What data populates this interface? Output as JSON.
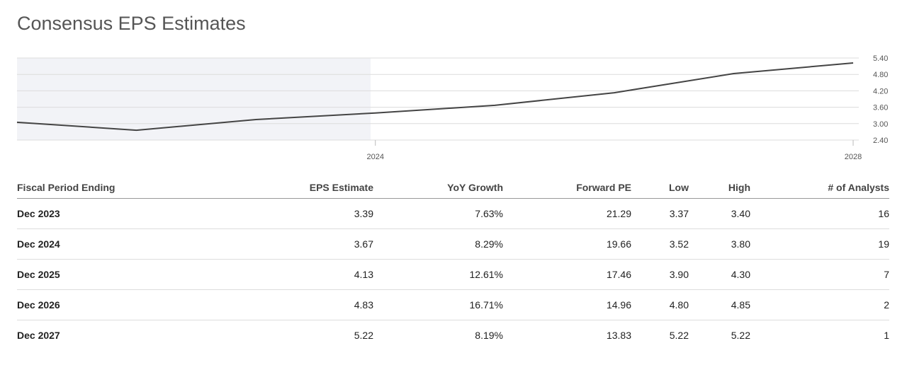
{
  "title": "Consensus EPS Estimates",
  "chart_data": {
    "type": "line",
    "x": [
      2021,
      2022,
      2023,
      2024,
      2025,
      2026,
      2027,
      2028
    ],
    "values": [
      3.05,
      2.76,
      3.15,
      3.39,
      3.67,
      4.13,
      4.83,
      5.22
    ],
    "color": "#444444",
    "xlim": [
      2021,
      2028
    ],
    "xticks": [
      2024,
      2028
    ],
    "ylim": [
      2.4,
      5.4
    ],
    "yticks": [
      {
        "value": 2.4,
        "label": "2.40"
      },
      {
        "value": 3.0,
        "label": "3.00"
      },
      {
        "value": 3.6,
        "label": "3.60"
      },
      {
        "value": 4.2,
        "label": "4.20"
      },
      {
        "value": 4.8,
        "label": "4.80"
      },
      {
        "value": 5.4,
        "label": "5.40"
      }
    ],
    "grid": true
  },
  "table": {
    "columns": [
      "Fiscal Period Ending",
      "EPS Estimate",
      "YoY Growth",
      "Forward PE",
      "Low",
      "High",
      "# of Analysts"
    ],
    "rows": [
      [
        "Dec 2023",
        "3.39",
        "7.63%",
        "21.29",
        "3.37",
        "3.40",
        "16"
      ],
      [
        "Dec 2024",
        "3.67",
        "8.29%",
        "19.66",
        "3.52",
        "3.80",
        "19"
      ],
      [
        "Dec 2025",
        "4.13",
        "12.61%",
        "17.46",
        "3.90",
        "4.30",
        "7"
      ],
      [
        "Dec 2026",
        "4.83",
        "16.71%",
        "14.96",
        "4.80",
        "4.85",
        "2"
      ],
      [
        "Dec 2027",
        "5.22",
        "8.19%",
        "13.83",
        "5.22",
        "5.22",
        "1"
      ]
    ]
  }
}
